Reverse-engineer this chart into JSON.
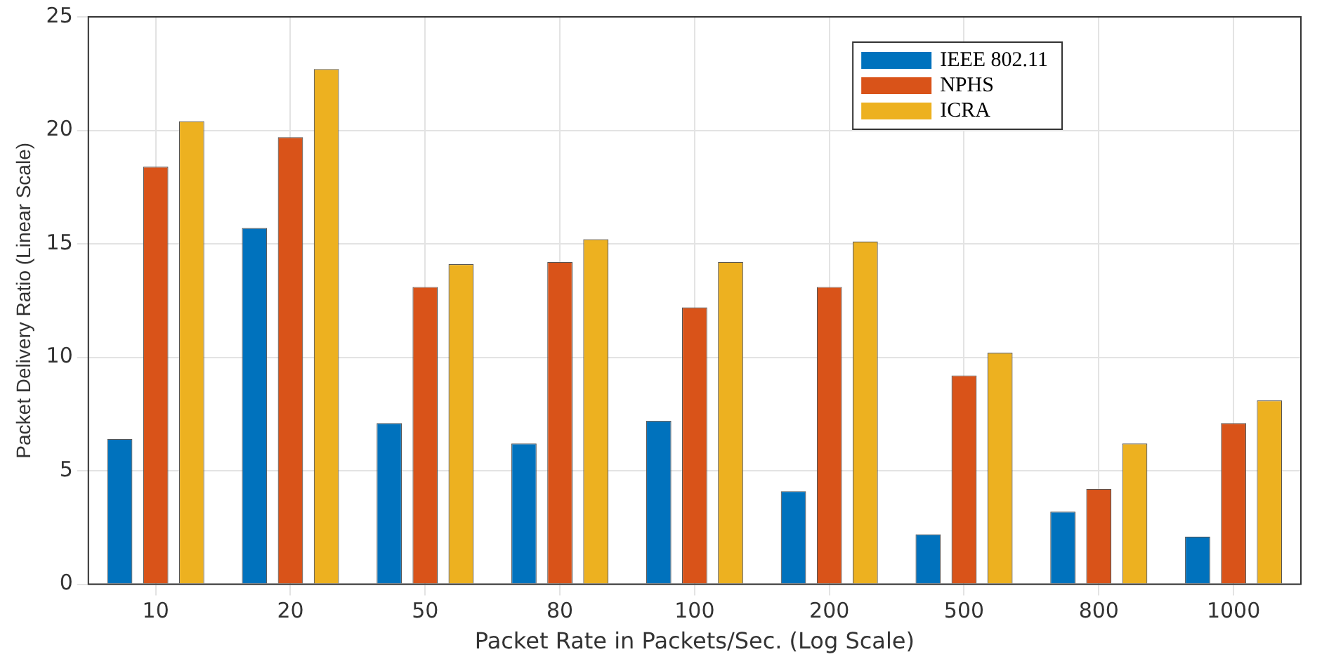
{
  "chart_data": {
    "type": "bar",
    "xlabel": "Packet Rate in Packets/Sec. (Log Scale)",
    "ylabel": "Packet Delivery Ratio (Linear Scale)",
    "categories": [
      "10",
      "20",
      "50",
      "80",
      "100",
      "200",
      "500",
      "800",
      "1000"
    ],
    "series": [
      {
        "name": "IEEE 802.11",
        "color": "#0072bd",
        "values": [
          6.4,
          15.7,
          7.1,
          6.2,
          7.2,
          4.1,
          2.2,
          3.2,
          2.1
        ]
      },
      {
        "name": "NPHS",
        "color": "#d95319",
        "values": [
          18.4,
          19.7,
          13.1,
          14.2,
          12.2,
          13.1,
          9.2,
          4.2,
          7.1
        ]
      },
      {
        "name": "ICRA",
        "color": "#edb120",
        "values": [
          20.4,
          22.7,
          14.1,
          15.2,
          14.2,
          15.1,
          10.2,
          6.2,
          8.1
        ]
      }
    ],
    "ylim": [
      0,
      25
    ],
    "yticks": [
      0,
      5,
      10,
      15,
      20,
      25
    ],
    "grid": true,
    "legend": "top right"
  }
}
